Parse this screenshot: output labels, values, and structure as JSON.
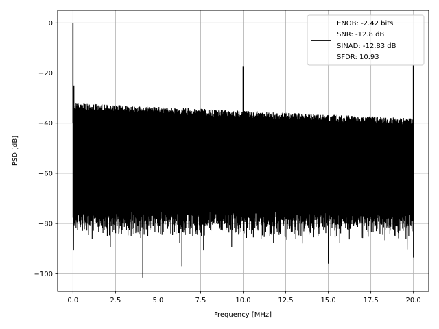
{
  "chart_data": {
    "type": "line",
    "title": "",
    "xlabel": "Frequency [MHz]",
    "ylabel": "PSD [dB]",
    "xlim": [
      -0.9,
      20.9
    ],
    "ylim": [
      -107,
      5
    ],
    "x_ticks": [
      0.0,
      2.5,
      5.0,
      7.5,
      10.0,
      12.5,
      15.0,
      17.5,
      20.0
    ],
    "x_tick_labels": [
      "0.0",
      "2.5",
      "5.0",
      "7.5",
      "10.0",
      "12.5",
      "15.0",
      "17.5",
      "20.0"
    ],
    "y_ticks": [
      0,
      -20,
      -40,
      -60,
      -80,
      -100
    ],
    "y_tick_labels": [
      "0",
      "−20",
      "−40",
      "−60",
      "−80",
      "−100"
    ],
    "grid": true,
    "legend_position": "top-right",
    "legend_lines": [
      "ENOB: -2.42 bits",
      "SNR: -12.8 dB",
      "SINAD: -12.83 dB",
      "SFDR: 10.93"
    ],
    "series": [
      {
        "color": "#000000",
        "noise_floor_upper_db": -36,
        "noise_floor_lower_db": -75,
        "x_range": [
          0.0,
          20.0
        ],
        "spikes": [
          {
            "x": 0.0,
            "y": 0.0
          },
          {
            "x": 0.05,
            "y": -25.0
          },
          {
            "x": 10.0,
            "y": -17.5
          },
          {
            "x": 20.0,
            "y": -17.0
          }
        ],
        "notable_minima": [
          {
            "x": 4.1,
            "y": -101.5
          },
          {
            "x": 2.2,
            "y": -89.5
          },
          {
            "x": 6.4,
            "y": -97.0
          },
          {
            "x": 15.0,
            "y": -96.0
          },
          {
            "x": 20.0,
            "y": -93.5
          }
        ]
      }
    ]
  }
}
